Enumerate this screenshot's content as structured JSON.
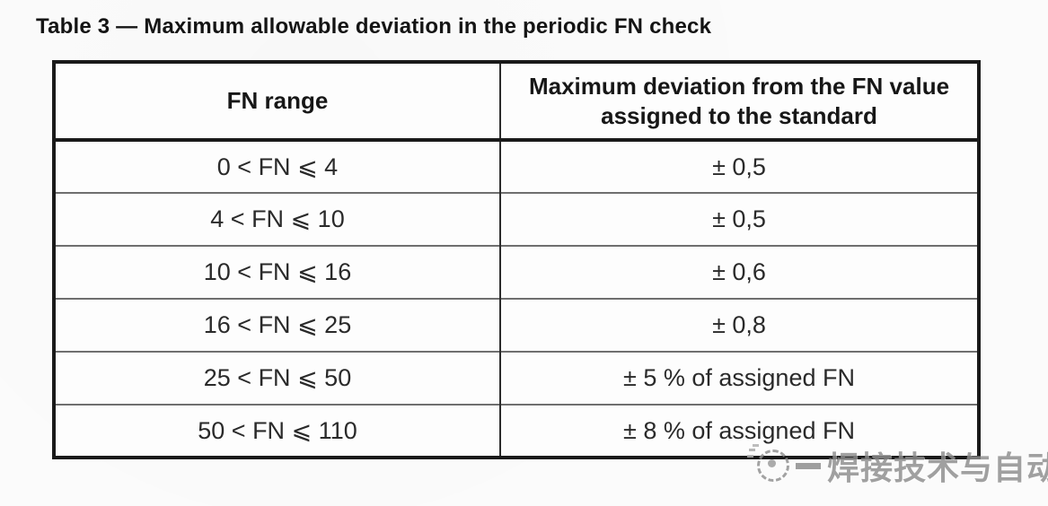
{
  "document": {
    "title": "Table 3 — Maximum allowable deviation in the periodic FN check"
  },
  "table": {
    "headers": [
      "FN range",
      "Maximum deviation from the FN value assigned to the standard"
    ],
    "rows": [
      [
        "0 < FN ⩽ 4",
        "± 0,5"
      ],
      [
        "4 < FN ⩽ 10",
        "± 0,5"
      ],
      [
        "10 < FN ⩽ 16",
        "± 0,6"
      ],
      [
        "16 < FN ⩽ 25",
        "± 0,8"
      ],
      [
        "25 < FN ⩽ 50",
        "± 5 % of assigned FN"
      ],
      [
        "50 < FN ⩽ 110",
        "± 8 % of assigned FN"
      ]
    ]
  },
  "watermark": {
    "text": "焊接技术与自动化",
    "logo_icon": "dashed-circle-logo",
    "color": "#8d8d8d"
  },
  "colors": {
    "page_background": "#fbfbfb",
    "table_border": "#1a1a1a",
    "row_divider": "#6f6f6f",
    "text": "#171717"
  }
}
